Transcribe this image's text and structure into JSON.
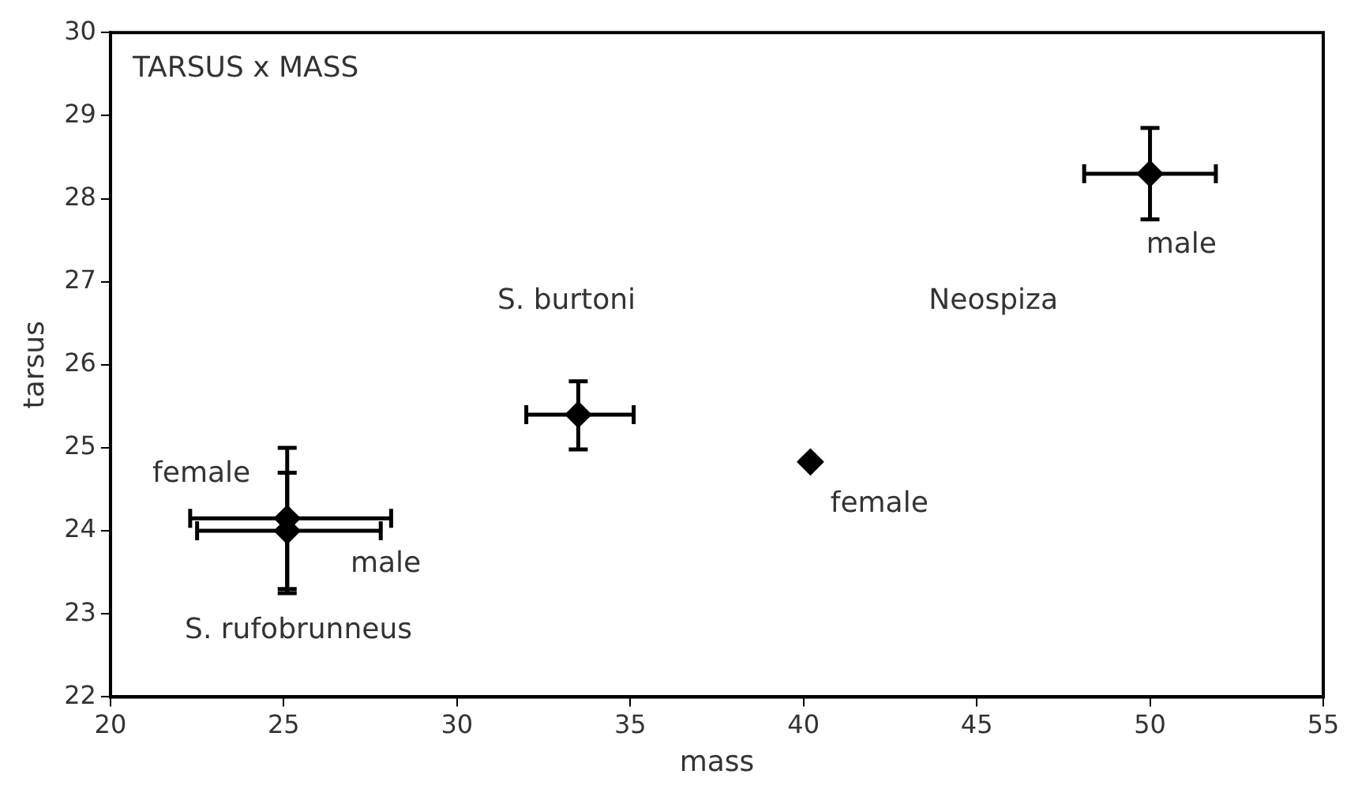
{
  "chart_data": {
    "type": "scatter",
    "title": "TARSUS x MASS",
    "xlabel": "mass",
    "ylabel": "tarsus",
    "x": [
      25.1,
      25.1,
      33.5,
      40.2,
      50.0
    ],
    "values": [
      24.15,
      24.0,
      25.4,
      24.83,
      28.3
    ],
    "errors": [
      [
        23.3,
        25.0
      ],
      [
        23.25,
        24.7
      ],
      [
        24.98,
        25.8
      ],
      null,
      [
        27.75,
        28.85
      ]
    ],
    "xerrors": [
      [
        22.3,
        28.1
      ],
      [
        22.5,
        27.8
      ],
      [
        32.0,
        35.1
      ],
      null,
      [
        48.1,
        51.9
      ]
    ],
    "color": "#000000",
    "marker": "diamond",
    "xlim": [
      20,
      55
    ],
    "xticks": [
      20,
      25,
      30,
      35,
      40,
      45,
      50,
      55
    ],
    "ylim": [
      22,
      30
    ],
    "yticks": [
      22,
      23,
      24,
      25,
      26,
      27,
      28,
      29,
      30
    ],
    "grid": false,
    "legend": false,
    "annotations": [
      "female",
      "male",
      "S. rufobrunneus",
      "S. burtoni",
      "Neospiza",
      "female",
      "male"
    ]
  }
}
